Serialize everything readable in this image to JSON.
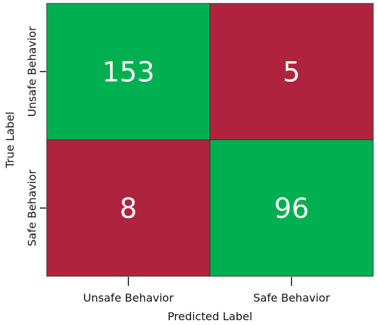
{
  "chart_data": {
    "type": "heatmap",
    "title": "",
    "xlabel": "Predicted Label",
    "ylabel": "True Label",
    "x_categories": [
      "Unsafe Behavior",
      "Safe Behavior"
    ],
    "y_categories": [
      "Unsafe Behavior",
      "Safe Behavior"
    ],
    "matrix": [
      [
        153,
        5
      ],
      [
        8,
        96
      ]
    ],
    "colors": {
      "correct": "#00b050",
      "incorrect": "#b0233f",
      "border": "#333333",
      "text": "#ffffff"
    },
    "grid": false,
    "legend": "none"
  }
}
